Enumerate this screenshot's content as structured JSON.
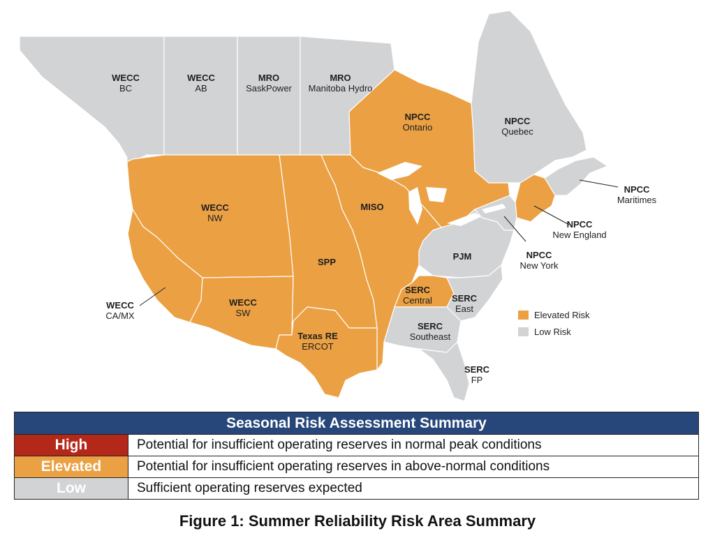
{
  "colors": {
    "elevated": "#eba043",
    "low": "#d2d3d5",
    "high": "#b42819",
    "header": "#27467a",
    "border": "#ffffff"
  },
  "regions": [
    {
      "id": "wecc-bc",
      "code": "WECC",
      "sub": "BC",
      "risk": "low"
    },
    {
      "id": "wecc-ab",
      "code": "WECC",
      "sub": "AB",
      "risk": "low"
    },
    {
      "id": "mro-sask",
      "code": "MRO",
      "sub": "SaskPower",
      "risk": "low"
    },
    {
      "id": "mro-manitoba",
      "code": "MRO",
      "sub": "Manitoba Hydro",
      "risk": "low"
    },
    {
      "id": "npcc-ontario",
      "code": "NPCC",
      "sub": "Ontario",
      "risk": "elevated"
    },
    {
      "id": "npcc-quebec",
      "code": "NPCC",
      "sub": "Quebec",
      "risk": "low"
    },
    {
      "id": "npcc-maritimes",
      "code": "NPCC",
      "sub": "Maritimes",
      "risk": "low"
    },
    {
      "id": "npcc-newengland",
      "code": "NPCC",
      "sub": "New England",
      "risk": "elevated"
    },
    {
      "id": "npcc-newyork",
      "code": "NPCC",
      "sub": "New York",
      "risk": "low"
    },
    {
      "id": "wecc-nw",
      "code": "WECC",
      "sub": "NW",
      "risk": "elevated"
    },
    {
      "id": "miso",
      "code": "MISO",
      "sub": "",
      "risk": "elevated"
    },
    {
      "id": "spp",
      "code": "SPP",
      "sub": "",
      "risk": "elevated"
    },
    {
      "id": "pjm",
      "code": "PJM",
      "sub": "",
      "risk": "low"
    },
    {
      "id": "wecc-camx",
      "code": "WECC",
      "sub": "CA/MX",
      "risk": "elevated"
    },
    {
      "id": "wecc-sw",
      "code": "WECC",
      "sub": "SW",
      "risk": "elevated"
    },
    {
      "id": "serc-central",
      "code": "SERC",
      "sub": "Central",
      "risk": "elevated"
    },
    {
      "id": "serc-east",
      "code": "SERC",
      "sub": "East",
      "risk": "low"
    },
    {
      "id": "serc-southeast",
      "code": "SERC",
      "sub": "Southeast",
      "risk": "low"
    },
    {
      "id": "texas-re",
      "code": "Texas RE",
      "sub": "ERCOT",
      "risk": "elevated"
    },
    {
      "id": "serc-fp",
      "code": "SERC",
      "sub": "FP",
      "risk": "low"
    }
  ],
  "legend": [
    {
      "label": "Elevated Risk",
      "risk": "elevated"
    },
    {
      "label": "Low Risk",
      "risk": "low"
    }
  ],
  "summary": {
    "title": "Seasonal Risk Assessment Summary",
    "rows": [
      {
        "level": "High",
        "description": "Potential for insufficient operating reserves in normal peak conditions"
      },
      {
        "level": "Elevated",
        "description": "Potential for insufficient operating reserves in above-normal conditions"
      },
      {
        "level": "Low",
        "description": "Sufficient operating reserves expected"
      }
    ]
  },
  "caption": "Figure 1: Summer Reliability Risk Area Summary"
}
